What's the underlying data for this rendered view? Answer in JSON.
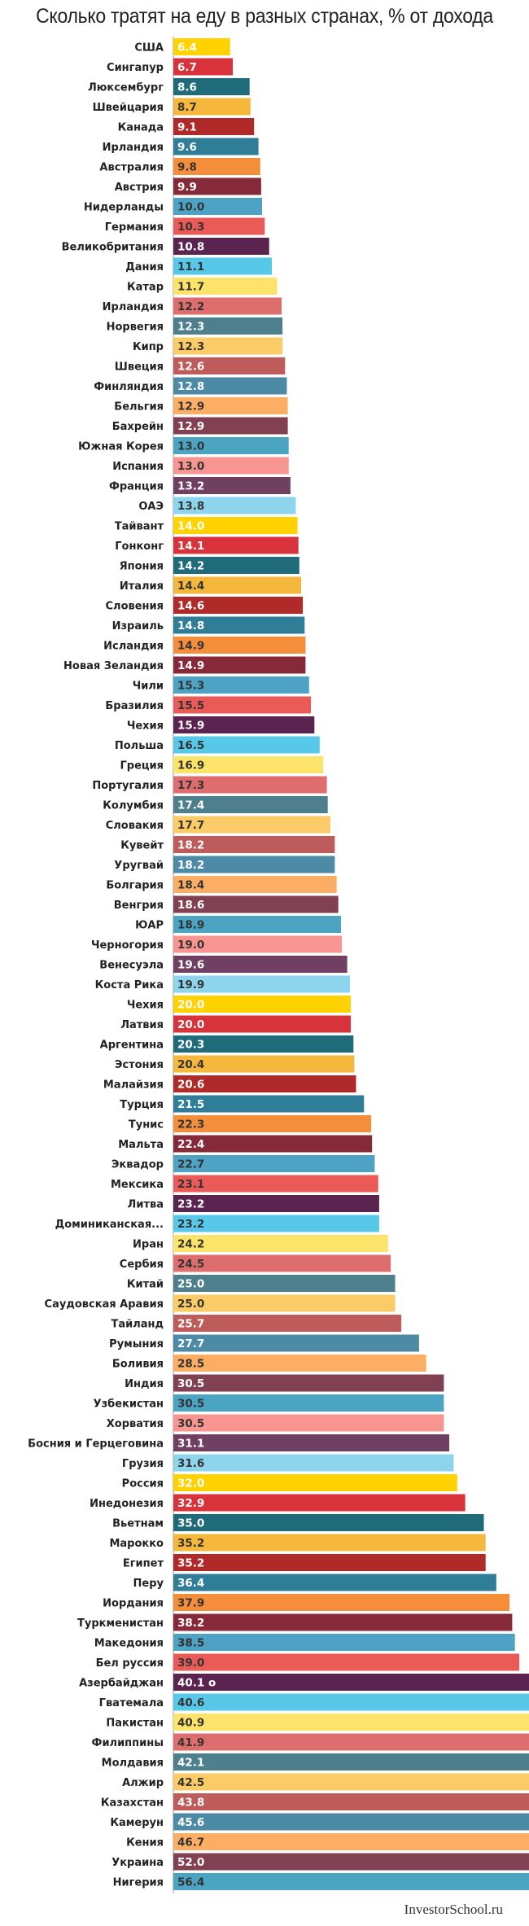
{
  "chart_data": {
    "type": "bar",
    "orientation": "horizontal",
    "title": "Сколько тратят на еду в разных странах, % от дохода",
    "xlabel": "",
    "ylabel": "",
    "xlim": [
      0,
      58
    ],
    "grid": false,
    "legend": "none",
    "categories": [
      "США",
      "Сингапур",
      "Люксембург",
      "Швейцария",
      "Канада",
      "Ирландия",
      "Австралия",
      "Австрия",
      "Нидерланды",
      "Германия",
      "Великобритания",
      "Дания",
      "Катар",
      "Ирландия",
      "Норвегия",
      "Кипр",
      "Швеция",
      "Финляндия",
      "Бельгия",
      "Бахрейн",
      "Южная Корея",
      "Испания",
      "Франция",
      "ОАЭ",
      "Тайвант",
      "Гонконг",
      "Япония",
      "Италия",
      "Словения",
      "Израиль",
      "Исландия",
      "Новая Зеландия",
      "Чили",
      "Бразилия",
      "Чехия",
      "Польша",
      "Греция",
      "Португалия",
      "Колумбия",
      "Словакия",
      "Кувейт",
      "Уругвай",
      "Болгария",
      "Венгрия",
      "ЮАР",
      "Черногория",
      "Венесуэла",
      "Коста Рика",
      "Чехия",
      "Латвия",
      "Аргентина",
      "Эстония",
      "Малайзия",
      "Турция",
      "Тунис",
      "Мальта",
      "Эквадор",
      "Мексика",
      "Литва",
      "Доминиканская...",
      "Иран",
      "Сербия",
      "Китай",
      "Саудовская Аравия",
      "Тайланд",
      "Румыния",
      "Боливия",
      "Индия",
      "Узбекистан",
      "Хорватия",
      "Босния и Герцеговина",
      "Грузия",
      "Россия",
      "Инедонезия",
      "Вьетнам",
      "Марокко",
      "Египет",
      "Перу",
      "Иордания",
      "Туркменистан",
      "Македония",
      "Бел  руссия",
      "Азербайджан",
      "Гватемала",
      "Пакистан",
      "Филиппины",
      "Молдавия",
      "Алжир",
      "Казахстан",
      "Камерун",
      "Кения",
      "Украина",
      "Нигерия"
    ],
    "values": [
      6.4,
      6.7,
      8.6,
      8.7,
      9.1,
      9.6,
      9.8,
      9.9,
      10.0,
      10.3,
      10.8,
      11.1,
      11.7,
      12.2,
      12.3,
      12.3,
      12.6,
      12.8,
      12.9,
      12.9,
      13.0,
      13.0,
      13.2,
      13.8,
      14.0,
      14.1,
      14.2,
      14.4,
      14.6,
      14.8,
      14.9,
      14.9,
      15.3,
      15.5,
      15.9,
      16.5,
      16.9,
      17.3,
      17.4,
      17.7,
      18.2,
      18.2,
      18.4,
      18.6,
      18.9,
      19.0,
      19.6,
      19.9,
      20.0,
      20.0,
      20.3,
      20.4,
      20.6,
      21.5,
      22.3,
      22.4,
      22.7,
      23.1,
      23.2,
      23.2,
      24.2,
      24.5,
      25.0,
      25.0,
      25.7,
      27.7,
      28.5,
      30.5,
      30.5,
      30.5,
      31.1,
      31.6,
      32.0,
      32.9,
      35.0,
      35.2,
      35.2,
      36.4,
      37.9,
      38.2,
      38.5,
      39.0,
      40.1,
      40.6,
      40.9,
      41.9,
      42.1,
      42.5,
      43.8,
      45.6,
      46.7,
      52.0,
      56.4
    ],
    "value_labels": [
      "6.4",
      "6.7",
      "8.6",
      "8.7",
      "9.1",
      "9.6",
      "9.8",
      "9.9",
      "10.0",
      "10.3",
      "10.8",
      "11.1",
      "11.7",
      "12.2",
      "12.3",
      "12.3",
      "12.6",
      "12.8",
      "12.9",
      "12.9",
      "13.0",
      "13.0",
      "13.2",
      "13.8",
      "14.0",
      "14.1",
      "14.2",
      "14.4",
      "14.6",
      "14.8",
      "14.9",
      "14.9",
      "15.3",
      "15.5",
      "15.9",
      "16.5",
      "16.9",
      "17.3",
      "17.4",
      "17.7",
      "18.2",
      "18.2",
      "18.4",
      "18.6",
      "18.9",
      "19.0",
      "19.6",
      "19.9",
      "20.0",
      "20.0",
      "20.3",
      "20.4",
      "20.6",
      "21.5",
      "22.3",
      "22.4",
      "22.7",
      "23.1",
      "23.2",
      "23.2",
      "24.2",
      "24.5",
      "25.0",
      "25.0",
      "25.7",
      "27.7",
      "28.5",
      "30.5",
      "30.5",
      "30.5",
      "31.1",
      "31.6",
      "32.0",
      "32.9",
      "35.0",
      "35.2",
      "35.2",
      "36.4",
      "37.9",
      "38.2",
      "38.5",
      "39.0",
      "40.1   o",
      "40.6",
      "40.9",
      "41.9",
      "42.1",
      "42.5",
      "43.8",
      "45.6",
      "46.7",
      "52.0",
      "56.4"
    ],
    "palette": [
      {
        "bar": "#FFD200",
        "text": "#ffffff"
      },
      {
        "bar": "#D8323A",
        "text": "#ffffff"
      },
      {
        "bar": "#1F6B7A",
        "text": "#ffffff"
      },
      {
        "bar": "#F5B73C",
        "text": "#333333"
      },
      {
        "bar": "#B02A2A",
        "text": "#ffffff"
      },
      {
        "bar": "#2F7D96",
        "text": "#ffffff"
      },
      {
        "bar": "#F58E3B",
        "text": "#333333"
      },
      {
        "bar": "#862A3A",
        "text": "#ffffff"
      },
      {
        "bar": "#4EA2C4",
        "text": "#333333"
      },
      {
        "bar": "#EA5B57",
        "text": "#333333"
      },
      {
        "bar": "#5A2350",
        "text": "#ffffff"
      },
      {
        "bar": "#57C8E8",
        "text": "#333333"
      },
      {
        "bar": "#FCE46A",
        "text": "#333333"
      },
      {
        "bar": "#DE6E6E",
        "text": "#333333"
      },
      {
        "bar": "#4D7F8C",
        "text": "#ffffff"
      },
      {
        "bar": "#FBCB67",
        "text": "#333333"
      },
      {
        "bar": "#BE5C5C",
        "text": "#ffffff"
      },
      {
        "bar": "#4C8AA6",
        "text": "#ffffff"
      },
      {
        "bar": "#FCAE64",
        "text": "#333333"
      },
      {
        "bar": "#824152",
        "text": "#ffffff"
      },
      {
        "bar": "#4AA4C2",
        "text": "#333333"
      },
      {
        "bar": "#F99590",
        "text": "#333333"
      },
      {
        "bar": "#704062",
        "text": "#ffffff"
      },
      {
        "bar": "#8DD5EC",
        "text": "#333333"
      }
    ]
  },
  "watermark": "InvestorSchool.ru"
}
